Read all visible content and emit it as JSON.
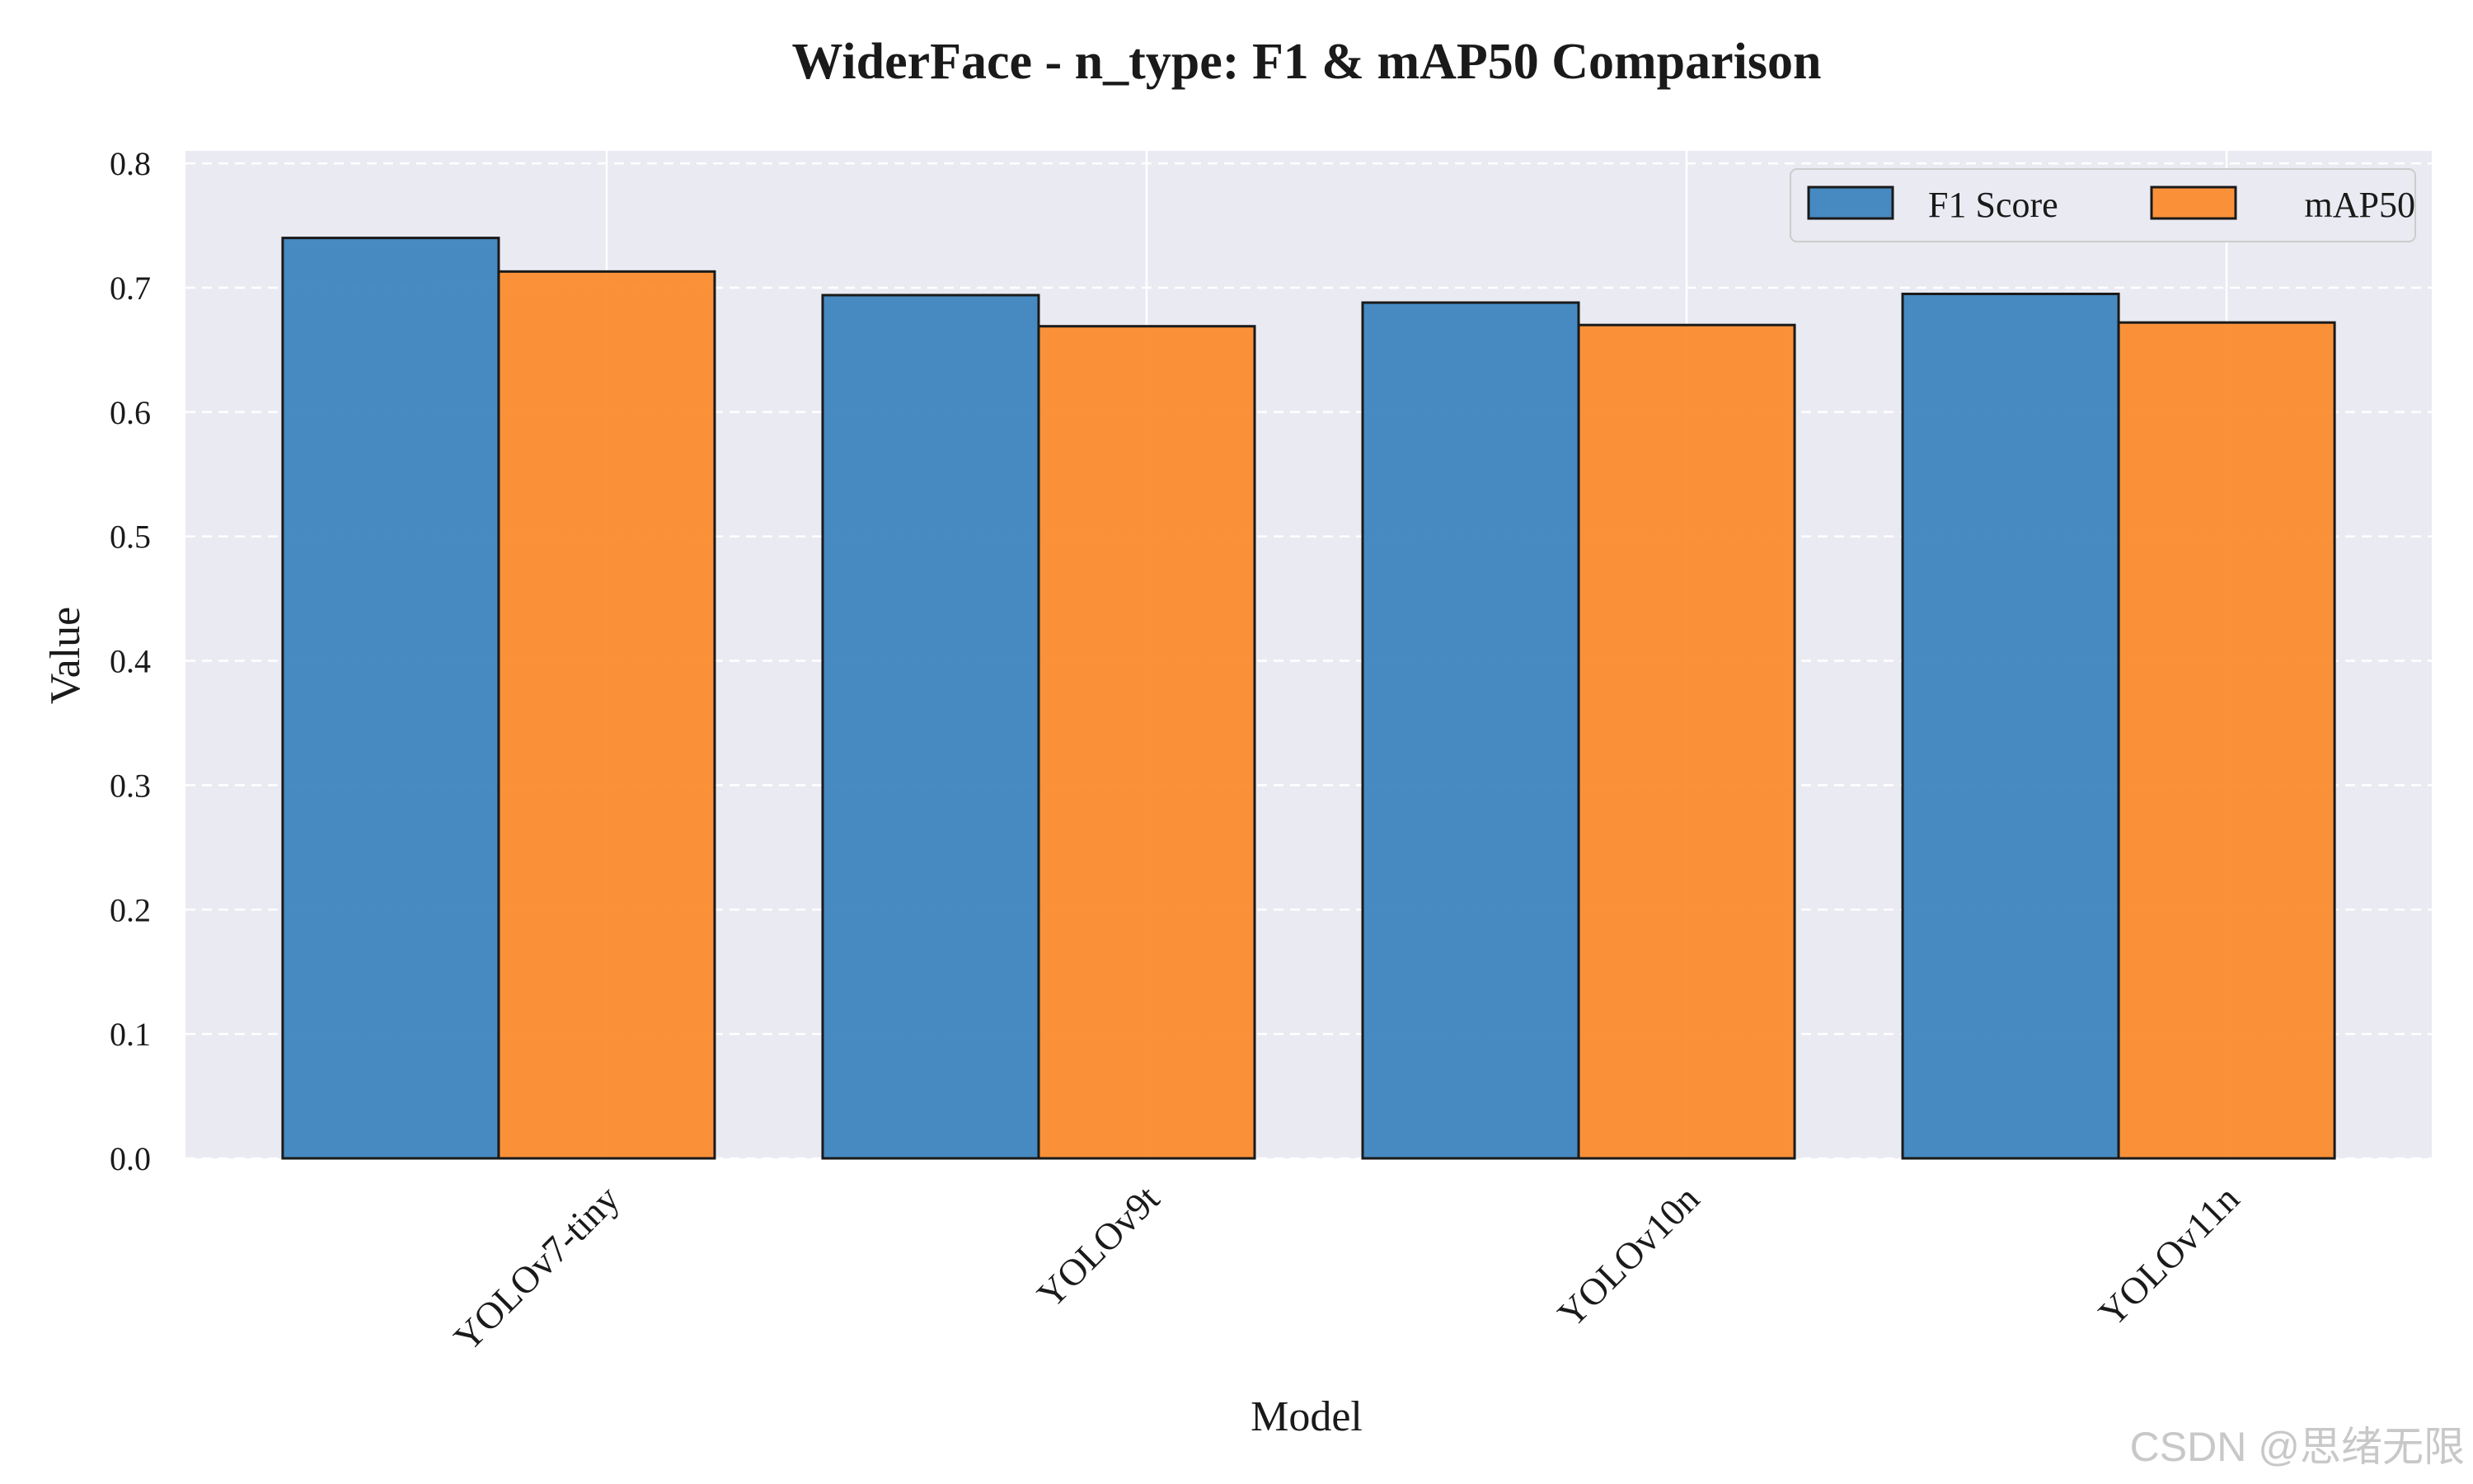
{
  "chart_data": {
    "type": "bar",
    "title": "WiderFace - n_type: F1 & mAP50 Comparison",
    "xlabel": "Model",
    "ylabel": "Value",
    "categories": [
      "YOLOv7-tiny",
      "YOLOv9t",
      "YOLOv10n",
      "YOLOv11n"
    ],
    "series": [
      {
        "name": "F1 Score",
        "color": "#3a82be",
        "values": [
          0.74,
          0.694,
          0.688,
          0.695
        ]
      },
      {
        "name": "mAP50",
        "color": "#fb8a2b",
        "values": [
          0.713,
          0.669,
          0.67,
          0.672
        ]
      }
    ],
    "ylim": [
      0,
      0.81
    ],
    "yticks": [
      "0.0",
      "0.1",
      "0.2",
      "0.3",
      "0.4",
      "0.5",
      "0.6",
      "0.7",
      "0.8"
    ],
    "grid": true,
    "legend_position": "top-right",
    "background": "#eaeaf2",
    "bar_edge_color": "#1a1a1a"
  },
  "watermark": "CSDN @思绪无限"
}
